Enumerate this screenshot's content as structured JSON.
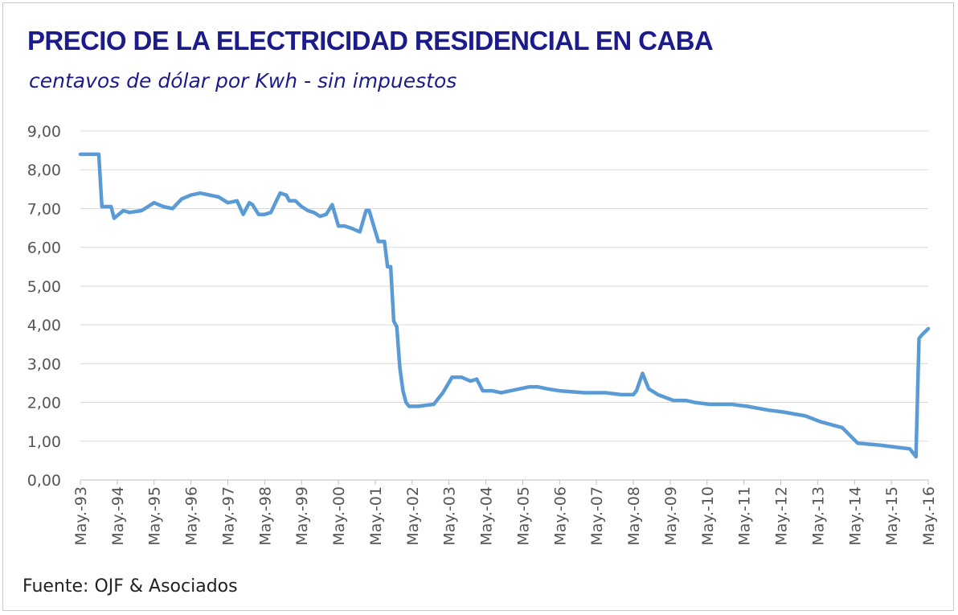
{
  "chart_data": {
    "type": "line",
    "title": "PRECIO DE LA ELECTRICIDAD RESIDENCIAL EN CABA",
    "subtitle": "centavos de dólar por Kwh - sin impuestos",
    "source": "Fuente:  OJF & Asociados",
    "ylim": [
      0,
      9
    ],
    "yticks": [
      "0,00",
      "1,00",
      "2,00",
      "3,00",
      "4,00",
      "5,00",
      "6,00",
      "7,00",
      "8,00",
      "9,00"
    ],
    "xticks": [
      "May.-93",
      "May.-94",
      "May.-95",
      "May.-96",
      "May.-97",
      "May.-98",
      "May.-99",
      "May.-00",
      "May.-01",
      "May.-02",
      "May.-03",
      "May.-04",
      "May.-05",
      "May.-06",
      "May.-07",
      "May.-08",
      "May.-09",
      "May.-10",
      "May.-11",
      "May.-12",
      "May.-13",
      "May.-14",
      "May.-15",
      "May.-16"
    ],
    "grid": true,
    "line_color": "#5b9bd5",
    "series": [
      {
        "x": [
          "1993-05",
          "1993-11",
          "1993-12",
          "1994-03",
          "1994-04",
          "1994-07",
          "1994-09",
          "1995-01",
          "1995-05",
          "1995-08",
          "1995-11",
          "1996-02",
          "1996-05",
          "1996-08",
          "1996-11",
          "1997-02",
          "1997-05",
          "1997-08",
          "1997-10",
          "1997-12",
          "1998-01",
          "1998-03",
          "1998-05",
          "1998-07",
          "1998-10",
          "1998-12",
          "1999-01",
          "1999-03",
          "1999-05",
          "1999-07",
          "1999-09",
          "1999-11",
          "2000-01",
          "2000-03",
          "2000-05",
          "2000-07",
          "2000-09",
          "2000-12",
          "2001-02",
          "2001-03",
          "2001-06",
          "2001-08",
          "2001-09",
          "2001-10",
          "2001-11",
          "2001-12",
          "2002-01",
          "2002-02",
          "2002-03",
          "2002-04",
          "2002-05",
          "2002-07",
          "2002-09",
          "2002-12",
          "2003-03",
          "2003-06",
          "2003-09",
          "2003-12",
          "2004-02",
          "2004-04",
          "2004-07",
          "2004-10",
          "2005-01",
          "2005-04",
          "2005-07",
          "2005-10",
          "2006-01",
          "2006-05",
          "2007-01",
          "2007-05",
          "2007-08",
          "2008-01",
          "2008-05",
          "2008-06",
          "2008-08",
          "2008-10",
          "2009-01",
          "2009-06",
          "2009-10",
          "2010-01",
          "2010-06",
          "2011-01",
          "2011-06",
          "2012-01",
          "2012-06",
          "2013-01",
          "2013-06",
          "2014-01",
          "2014-06",
          "2015-01",
          "2015-06",
          "2015-11",
          "2016-01",
          "2016-02",
          "2016-03",
          "2016-05"
        ],
        "y": [
          8.4,
          8.4,
          7.05,
          7.05,
          6.75,
          6.95,
          6.9,
          6.95,
          7.15,
          7.05,
          7.0,
          7.25,
          7.35,
          7.4,
          7.35,
          7.3,
          7.15,
          7.2,
          6.85,
          7.15,
          7.1,
          6.85,
          6.85,
          6.9,
          7.4,
          7.35,
          7.2,
          7.2,
          7.05,
          6.95,
          6.9,
          6.8,
          6.85,
          7.1,
          6.55,
          6.55,
          6.5,
          6.4,
          6.95,
          6.95,
          6.15,
          6.15,
          5.5,
          5.5,
          4.1,
          3.95,
          2.9,
          2.3,
          2.0,
          1.9,
          1.9,
          1.9,
          1.92,
          1.95,
          2.25,
          2.65,
          2.65,
          2.55,
          2.6,
          2.3,
          2.3,
          2.25,
          2.3,
          2.35,
          2.4,
          2.4,
          2.35,
          2.3,
          2.25,
          2.25,
          2.25,
          2.2,
          2.2,
          2.3,
          2.75,
          2.35,
          2.2,
          2.05,
          2.05,
          2.0,
          1.95,
          1.95,
          1.9,
          1.8,
          1.75,
          1.65,
          1.5,
          1.35,
          0.95,
          0.9,
          0.85,
          0.8,
          0.6,
          3.65,
          3.75,
          3.9
        ]
      }
    ]
  }
}
